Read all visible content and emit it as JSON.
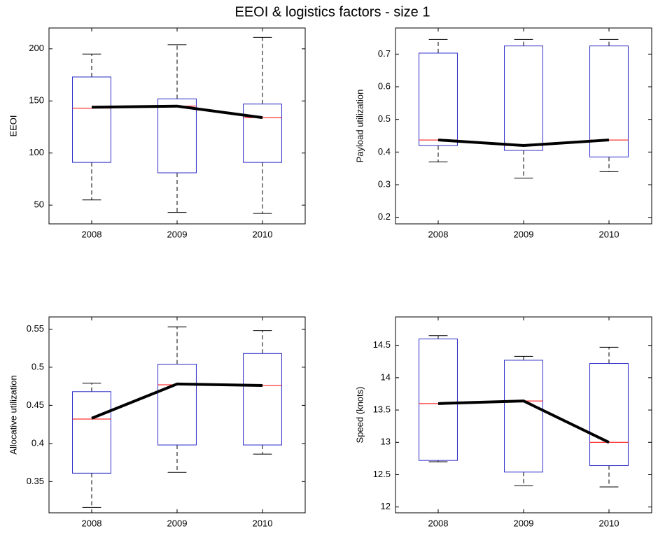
{
  "title": "EEOI & logistics factors - size 1",
  "chart_data": [
    {
      "type": "box",
      "ylabel": "EEOI",
      "categories": [
        "2008",
        "2009",
        "2010"
      ],
      "ylim": [
        32,
        220
      ],
      "yticks": [
        50,
        100,
        150,
        200
      ],
      "box_color": "#2b2bc8",
      "median_color": "#ff0000",
      "whisker_color": "#000000",
      "boxes": [
        {
          "min": 55,
          "q1": 91,
          "median": 143,
          "q3": 173,
          "max": 195
        },
        {
          "min": 43,
          "q1": 81,
          "median": 145,
          "q3": 152,
          "max": 204
        },
        {
          "min": 42,
          "q1": 91,
          "median": 134,
          "q3": 147,
          "max": 211
        }
      ],
      "mean_line": {
        "color": "#000000",
        "values": [
          144,
          145,
          134
        ]
      }
    },
    {
      "type": "box",
      "ylabel": "Payload utilization",
      "categories": [
        "2008",
        "2009",
        "2010"
      ],
      "ylim": [
        0.18,
        0.78
      ],
      "yticks": [
        0.2,
        0.3,
        0.4,
        0.5,
        0.6,
        0.7
      ],
      "box_color": "#2b2bc8",
      "median_color": "#ff0000",
      "whisker_color": "#000000",
      "boxes": [
        {
          "min": 0.37,
          "q1": 0.42,
          "median": 0.437,
          "q3": 0.703,
          "max": 0.745
        },
        {
          "min": 0.32,
          "q1": 0.405,
          "median": 0.42,
          "q3": 0.725,
          "max": 0.745
        },
        {
          "min": 0.34,
          "q1": 0.385,
          "median": 0.437,
          "q3": 0.725,
          "max": 0.745
        }
      ],
      "mean_line": {
        "color": "#000000",
        "values": [
          0.437,
          0.42,
          0.437
        ]
      }
    },
    {
      "type": "box",
      "ylabel": "Allocative utilization",
      "categories": [
        "2008",
        "2009",
        "2010"
      ],
      "ylim": [
        0.309,
        0.566
      ],
      "yticks": [
        0.35,
        0.4,
        0.45,
        0.5,
        0.55
      ],
      "box_color": "#2b2bc8",
      "median_color": "#ff0000",
      "whisker_color": "#000000",
      "boxes": [
        {
          "min": 0.316,
          "q1": 0.361,
          "median": 0.432,
          "q3": 0.468,
          "max": 0.479
        },
        {
          "min": 0.362,
          "q1": 0.398,
          "median": 0.477,
          "q3": 0.504,
          "max": 0.553
        },
        {
          "min": 0.386,
          "q1": 0.398,
          "median": 0.476,
          "q3": 0.518,
          "max": 0.548
        }
      ],
      "mean_line": {
        "color": "#000000",
        "values": [
          0.433,
          0.478,
          0.476
        ]
      }
    },
    {
      "type": "box",
      "ylabel": "Speed (knots)",
      "categories": [
        "2008",
        "2009",
        "2010"
      ],
      "ylim": [
        11.91,
        14.94
      ],
      "yticks": [
        12,
        12.5,
        13,
        13.5,
        14,
        14.5
      ],
      "box_color": "#2b2bc8",
      "median_color": "#ff0000",
      "whisker_color": "#000000",
      "boxes": [
        {
          "min": 12.7,
          "q1": 12.72,
          "median": 13.6,
          "q3": 14.6,
          "max": 14.65
        },
        {
          "min": 12.33,
          "q1": 12.54,
          "median": 13.64,
          "q3": 14.27,
          "max": 14.33
        },
        {
          "min": 12.31,
          "q1": 12.64,
          "median": 13.0,
          "q3": 14.22,
          "max": 14.47
        }
      ],
      "mean_line": {
        "color": "#000000",
        "values": [
          13.6,
          13.64,
          13.0
        ]
      }
    }
  ]
}
